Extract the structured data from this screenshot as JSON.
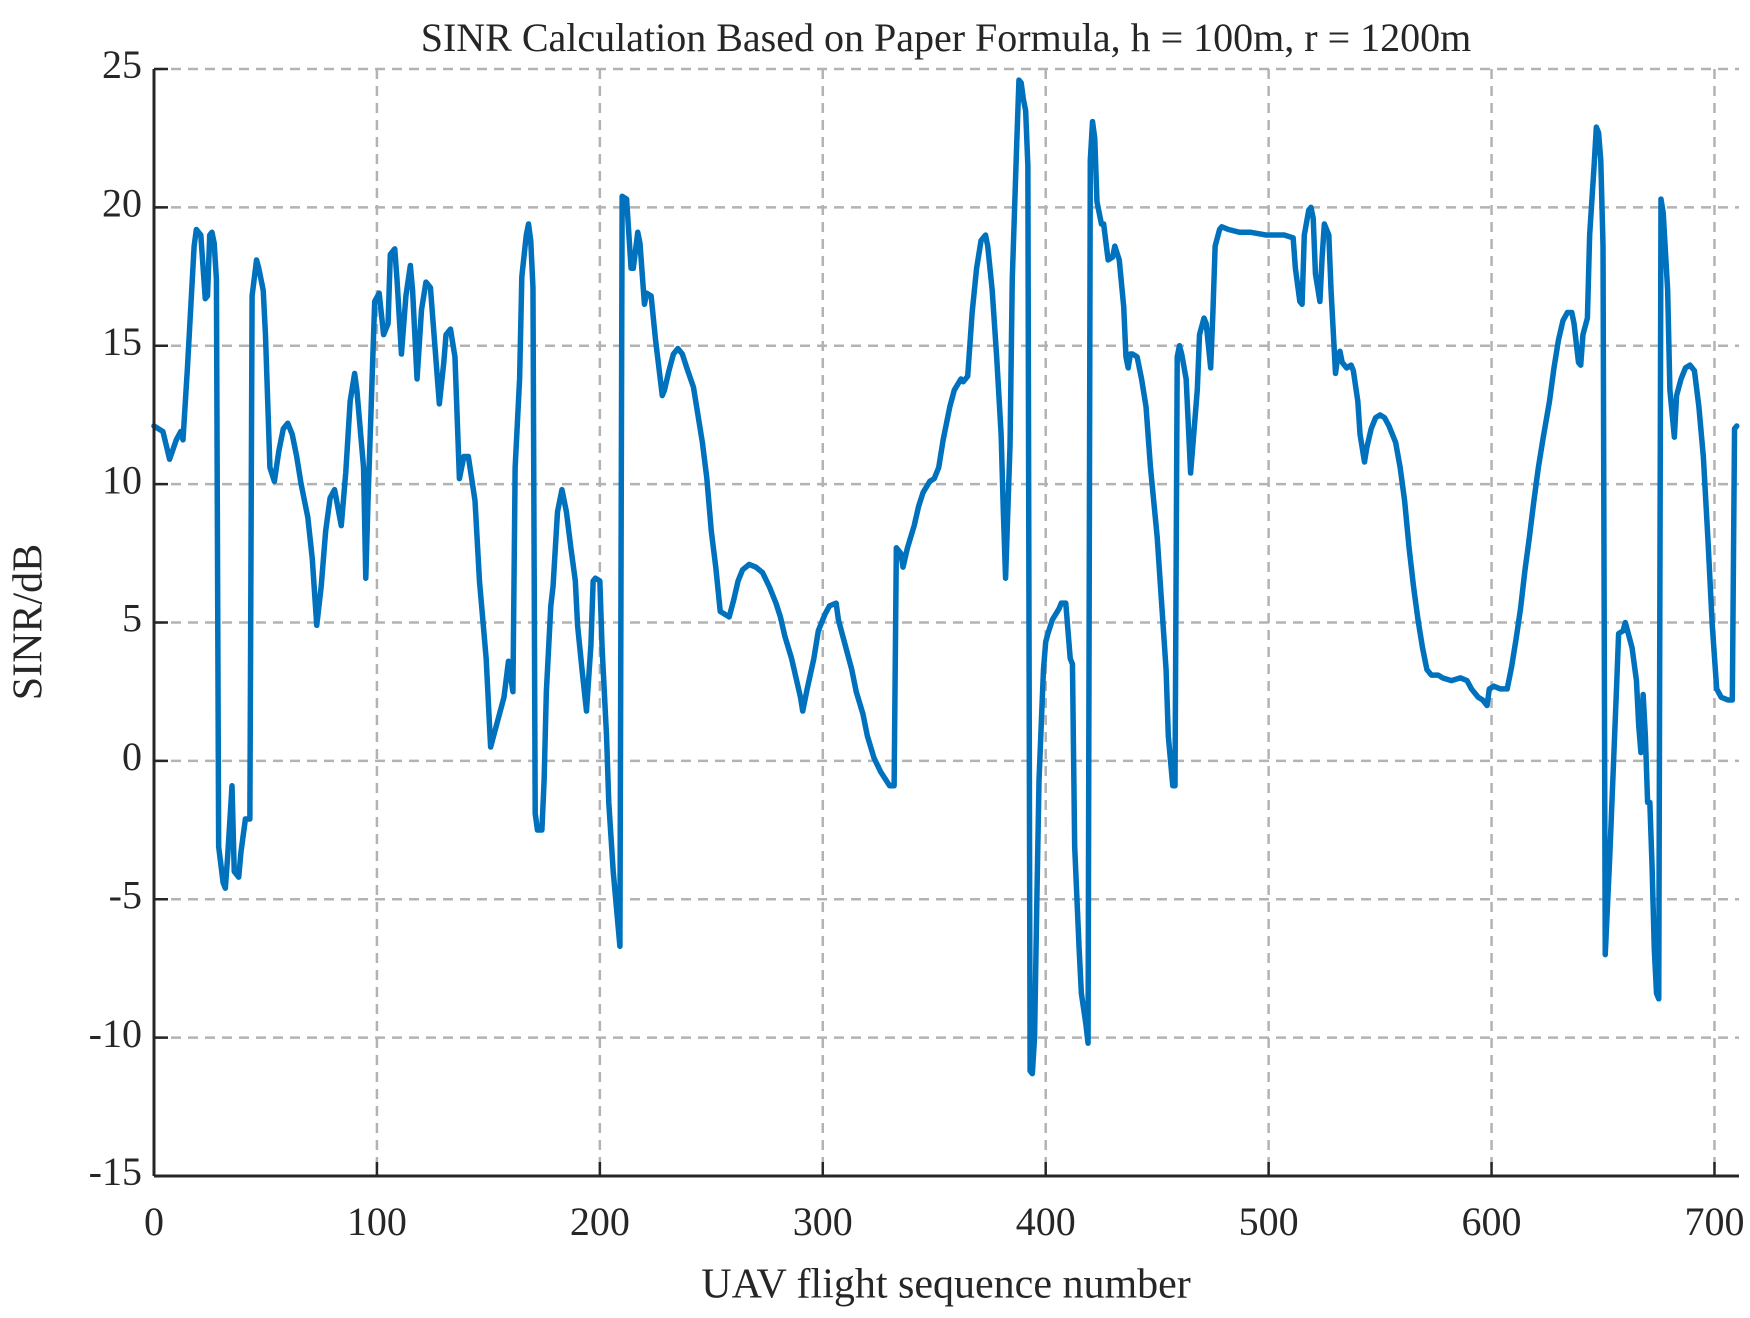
{
  "chart_data": {
    "type": "line",
    "title": "SINR Calculation Based on Paper Formula, h = 100m, r = 1200m",
    "x_label": "UAV flight sequence number",
    "y_label": "SINR/dB",
    "color": "#0072BD",
    "grid": true,
    "xlim": [
      0,
      711
    ],
    "ylim": [
      -15,
      25
    ],
    "xticks": [
      0,
      100,
      200,
      300,
      400,
      500,
      600,
      700
    ],
    "yticks": [
      -15,
      -10,
      -5,
      0,
      5,
      10,
      15,
      20,
      25
    ],
    "x": [
      0,
      4,
      7,
      10,
      12,
      13,
      15,
      18,
      19,
      21,
      23,
      24,
      25,
      26,
      27,
      28,
      29,
      31,
      32,
      33,
      35,
      36,
      38,
      39,
      41,
      43,
      44,
      46,
      47,
      49,
      50,
      52,
      54,
      56,
      58,
      60,
      62,
      64,
      66,
      69,
      71,
      73,
      75,
      77,
      79,
      81,
      84,
      86,
      88,
      90,
      91,
      94,
      95,
      96,
      98,
      99,
      101,
      103,
      105,
      106,
      108,
      109,
      111,
      113,
      115,
      116,
      118,
      120,
      122,
      124,
      126,
      128,
      130,
      131,
      133,
      135,
      137,
      139,
      141,
      144,
      146,
      149,
      151,
      153,
      155,
      157,
      159,
      161,
      162,
      164,
      165,
      167,
      168,
      169,
      170,
      171,
      172,
      174,
      175,
      176,
      178,
      179,
      181,
      183,
      185,
      187,
      189,
      190,
      192,
      194,
      196,
      197,
      198,
      200,
      201,
      203,
      204,
      206,
      208,
      209,
      210,
      212,
      214,
      215,
      217,
      218,
      220,
      221,
      223,
      225,
      228,
      229,
      231,
      233,
      235,
      237,
      239,
      242,
      244,
      246,
      248,
      250,
      252,
      254,
      256,
      258,
      260,
      262,
      264,
      267,
      270,
      273,
      276,
      279,
      281,
      283,
      286,
      288,
      290,
      291,
      293,
      296,
      298,
      301,
      303,
      306,
      307,
      310,
      313,
      315,
      318,
      320,
      323,
      326,
      330,
      332,
      333,
      335,
      336,
      338,
      341,
      343,
      345,
      348,
      350,
      352,
      354,
      357,
      359,
      362,
      363,
      365,
      367,
      369,
      371,
      373,
      374,
      376,
      378,
      380,
      381,
      382,
      384,
      385,
      387,
      388,
      389,
      390,
      391,
      392,
      393,
      394,
      395,
      396,
      397,
      398,
      399,
      400,
      401,
      403,
      406,
      407,
      409,
      411,
      412,
      413,
      415,
      416,
      418,
      419,
      420,
      421,
      422,
      423,
      425,
      426,
      428,
      430,
      431,
      433,
      435,
      436,
      437,
      438,
      439,
      441,
      443,
      445,
      447,
      450,
      452,
      454,
      455,
      457,
      458,
      459,
      460,
      461,
      463,
      465,
      466,
      468,
      469,
      471,
      472,
      474,
      475,
      476,
      478,
      479,
      482,
      487,
      492,
      499,
      507,
      511,
      512,
      514,
      515,
      516,
      518,
      519,
      520,
      521,
      523,
      524,
      525,
      527,
      528,
      530,
      531,
      532,
      533,
      535,
      537,
      538,
      540,
      541,
      543,
      544,
      546,
      548,
      550,
      552,
      554,
      557,
      559,
      561,
      563,
      565,
      567,
      569,
      571,
      573,
      576,
      578,
      582,
      586,
      589,
      591,
      594,
      596,
      598,
      599,
      601,
      604,
      607,
      609,
      611,
      613,
      615,
      617,
      619,
      621,
      623,
      626,
      628,
      630,
      632,
      634,
      636,
      637,
      639,
      640,
      641,
      643,
      644,
      646,
      647,
      648,
      649,
      650,
      651,
      653,
      654,
      656,
      657,
      659,
      660,
      661,
      663,
      665,
      666,
      667,
      668,
      669,
      670,
      671,
      672,
      673,
      674,
      675,
      676,
      677,
      679,
      680,
      682,
      683,
      685,
      687,
      689,
      691,
      693,
      695,
      697,
      699,
      701,
      703,
      706,
      708,
      709,
      710
    ],
    "values": [
      12.1,
      11.9,
      10.9,
      11.6,
      11.9,
      11.6,
      14.2,
      18.6,
      19.2,
      19.0,
      16.7,
      16.8,
      19.0,
      19.1,
      18.7,
      17.4,
      -3.1,
      -4.4,
      -4.6,
      -3.5,
      -0.9,
      -4.0,
      -4.2,
      -3.3,
      -2.1,
      -2.1,
      16.8,
      18.1,
      17.8,
      17.0,
      15.4,
      10.6,
      10.1,
      11.2,
      12.0,
      12.2,
      11.8,
      11.0,
      10.0,
      8.8,
      7.3,
      4.9,
      6.3,
      8.3,
      9.5,
      9.8,
      8.5,
      10.4,
      13.0,
      14.0,
      13.4,
      10.6,
      6.6,
      9.4,
      14.2,
      16.6,
      16.9,
      15.4,
      15.8,
      18.3,
      18.5,
      17.4,
      14.7,
      16.8,
      17.9,
      17.0,
      13.8,
      16.3,
      17.3,
      17.1,
      15.0,
      12.9,
      14.4,
      15.4,
      15.6,
      14.6,
      10.2,
      11.0,
      11.0,
      9.4,
      6.5,
      3.7,
      0.5,
      1.1,
      1.7,
      2.3,
      3.6,
      2.5,
      10.6,
      13.8,
      17.5,
      19.0,
      19.4,
      18.8,
      17.1,
      -1.9,
      -2.5,
      -2.5,
      -0.7,
      2.5,
      5.6,
      6.3,
      9.0,
      9.8,
      9.0,
      7.7,
      6.5,
      4.9,
      3.3,
      1.8,
      4.2,
      6.5,
      6.6,
      6.5,
      4.1,
      0.9,
      -1.5,
      -4.0,
      -5.8,
      -6.7,
      20.4,
      20.3,
      17.8,
      17.8,
      19.1,
      18.7,
      16.5,
      16.9,
      16.8,
      15.2,
      13.2,
      13.4,
      14.1,
      14.7,
      14.9,
      14.7,
      14.2,
      13.5,
      12.5,
      11.5,
      10.2,
      8.3,
      7.0,
      5.4,
      5.3,
      5.2,
      5.8,
      6.5,
      6.9,
      7.1,
      7.0,
      6.8,
      6.3,
      5.7,
      5.2,
      4.5,
      3.7,
      3.0,
      2.3,
      1.8,
      2.6,
      3.7,
      4.7,
      5.3,
      5.6,
      5.7,
      5.1,
      4.2,
      3.3,
      2.5,
      1.7,
      0.9,
      0.1,
      -0.4,
      -0.9,
      -0.9,
      7.7,
      7.5,
      7.0,
      7.7,
      8.5,
      9.2,
      9.7,
      10.1,
      10.2,
      10.6,
      11.6,
      12.8,
      13.4,
      13.8,
      13.7,
      13.9,
      16.2,
      17.8,
      18.8,
      19.0,
      18.6,
      17.0,
      14.6,
      11.8,
      9.0,
      6.6,
      11.4,
      17.4,
      22.3,
      24.6,
      24.5,
      23.9,
      23.5,
      21.5,
      -11.2,
      -11.3,
      -10.0,
      -5.2,
      -0.7,
      1.3,
      3.3,
      4.3,
      4.6,
      5.1,
      5.5,
      5.7,
      5.7,
      3.7,
      3.5,
      -3.1,
      -6.8,
      -8.4,
      -9.5,
      -10.2,
      21.7,
      23.1,
      22.5,
      20.2,
      19.4,
      19.4,
      18.1,
      18.2,
      18.6,
      18.1,
      16.4,
      14.6,
      14.2,
      14.7,
      14.7,
      14.6,
      13.8,
      12.8,
      10.6,
      8.1,
      5.7,
      3.3,
      0.9,
      -0.9,
      -0.9,
      14.6,
      15.0,
      14.7,
      13.8,
      10.4,
      11.4,
      13.4,
      15.4,
      16.0,
      15.8,
      14.2,
      16.2,
      18.6,
      19.2,
      19.3,
      19.2,
      19.1,
      19.1,
      19.0,
      19.0,
      18.9,
      17.8,
      16.6,
      16.5,
      19.0,
      19.9,
      20.0,
      19.6,
      17.6,
      16.6,
      18.2,
      19.4,
      19.0,
      17.0,
      14.0,
      14.6,
      14.8,
      14.4,
      14.2,
      14.3,
      14.1,
      13.0,
      11.8,
      10.8,
      11.3,
      12.0,
      12.4,
      12.5,
      12.4,
      12.1,
      11.5,
      10.6,
      9.4,
      7.7,
      6.3,
      5.1,
      4.1,
      3.3,
      3.1,
      3.1,
      3.0,
      2.9,
      3.0,
      2.9,
      2.6,
      2.3,
      2.2,
      2.0,
      2.6,
      2.7,
      2.6,
      2.6,
      3.4,
      4.4,
      5.5,
      6.9,
      8.1,
      9.4,
      10.6,
      11.6,
      13.0,
      14.2,
      15.2,
      15.9,
      16.2,
      16.2,
      15.8,
      14.4,
      14.3,
      15.4,
      16.0,
      19.0,
      21.5,
      22.9,
      22.7,
      21.7,
      18.6,
      -7.0,
      -3.5,
      -1.5,
      2.5,
      4.6,
      4.7,
      5.0,
      4.7,
      4.1,
      2.9,
      1.3,
      0.3,
      2.4,
      0.9,
      -1.5,
      -1.5,
      -3.8,
      -6.8,
      -8.4,
      -8.6,
      20.3,
      19.8,
      17.0,
      13.4,
      11.7,
      13.2,
      13.8,
      14.2,
      14.3,
      14.1,
      12.8,
      11.0,
      8.1,
      4.9,
      2.6,
      2.3,
      2.2,
      2.2,
      12.0,
      12.1
    ]
  }
}
